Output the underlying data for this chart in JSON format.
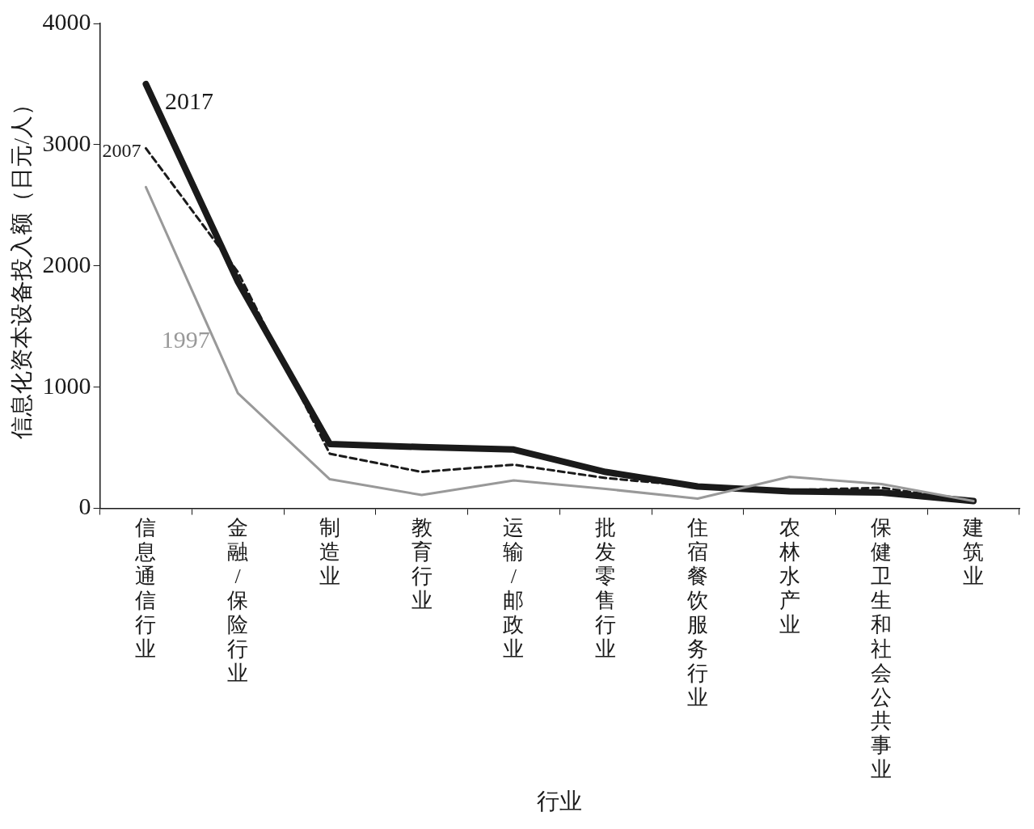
{
  "chart_data": {
    "type": "line",
    "xlabel": "行业",
    "ylabel": "信息化资本设备投入额（日元/人）",
    "categories": [
      "信息通信行业",
      "金融/保险行业",
      "制造业",
      "教育行业",
      "运输/邮政业",
      "批发零售行业",
      "住宿餐饮服务行业",
      "农林水产业",
      "保健卫生和社会公共事业",
      "建筑业"
    ],
    "series": [
      {
        "name": "2017",
        "color": "#1a1a1a",
        "line_style": "solid",
        "values": [
          3500,
          1870,
          530,
          505,
          485,
          300,
          180,
          140,
          130,
          60
        ]
      },
      {
        "name": "2007",
        "color": "#1a1a1a",
        "line_style": "dashed",
        "values": [
          2970,
          1950,
          450,
          300,
          360,
          250,
          180,
          150,
          170,
          60
        ]
      },
      {
        "name": "1997",
        "color": "#999999",
        "line_style": "solid",
        "values": [
          2650,
          950,
          240,
          110,
          230,
          160,
          80,
          260,
          200,
          60
        ]
      }
    ],
    "ylim": [
      0,
      4000
    ],
    "yticks": [
      0,
      1000,
      2000,
      3000,
      4000
    ],
    "grid": false,
    "legend": false,
    "marker": "none"
  }
}
